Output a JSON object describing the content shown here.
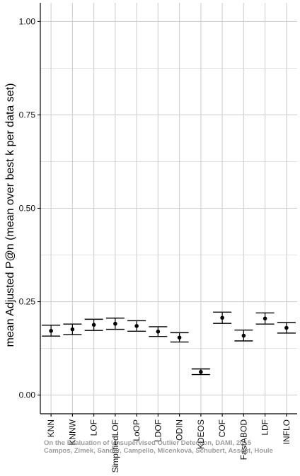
{
  "chart_data": {
    "type": "scatter",
    "ylabel": "mean Adjusted P@n (mean over best k per data set)",
    "xlabel": "",
    "ylim": [
      -0.05,
      1.05
    ],
    "y_ticks": [
      "0.00",
      "0.25",
      "0.50",
      "0.75",
      "1.00"
    ],
    "y_tick_values": [
      0,
      0.25,
      0.5,
      0.75,
      1.0
    ],
    "grid": true,
    "categories": [
      "KNN",
      "KNNW",
      "LOF",
      "SimplifiedLOF",
      "LoOP",
      "LDOF",
      "ODIN",
      "KDEOS",
      "COF",
      "FastABOD",
      "LDF",
      "INFLO"
    ],
    "series": [
      {
        "mean": [
          0.172,
          0.176,
          0.188,
          0.191,
          0.185,
          0.17,
          0.154,
          0.062,
          0.207,
          0.159,
          0.205,
          0.18
        ],
        "lower": [
          0.158,
          0.162,
          0.173,
          0.176,
          0.171,
          0.157,
          0.142,
          0.055,
          0.192,
          0.145,
          0.19,
          0.166
        ],
        "upper": [
          0.187,
          0.19,
          0.203,
          0.206,
          0.199,
          0.183,
          0.167,
          0.07,
          0.222,
          0.174,
          0.22,
          0.194
        ]
      }
    ],
    "colors": {
      "point": "#000000",
      "errorbar": "#000000",
      "grid": "#d0d0d0",
      "axis": "#000000"
    },
    "watermark": [
      "On the Evaluation of Unsupervised Outlier Detection, DAMI, 2015",
      "Campos, Zimek, Sander, Campello, Micenková, Schubert, Assent, Houle"
    ]
  }
}
